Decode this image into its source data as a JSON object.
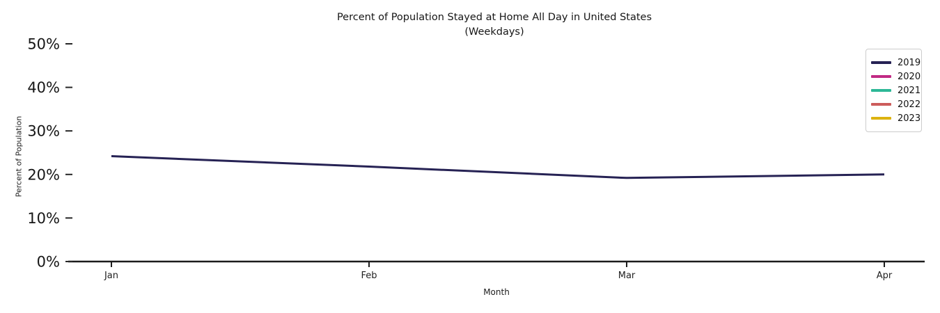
{
  "chart_data": {
    "type": "line",
    "title": "Percent of Population Stayed at Home All Day in United States",
    "subtitle": "(Weekdays)",
    "xlabel": "Month",
    "ylabel": "Percent of Population",
    "x_categories": [
      "Jan",
      "Feb",
      "Mar",
      "Apr"
    ],
    "y_tick_labels": [
      "0%",
      "10%",
      "20%",
      "30%",
      "40%",
      "50%"
    ],
    "y_tick_values": [
      0,
      10,
      20,
      30,
      40,
      50
    ],
    "ylim": [
      0,
      50
    ],
    "grid": false,
    "legend_position": "upper right",
    "series": [
      {
        "name": "2019",
        "color": "#262254",
        "values": [
          24.2,
          21.8,
          19.2,
          20.0
        ]
      },
      {
        "name": "2020",
        "color": "#c12a84",
        "values": []
      },
      {
        "name": "2021",
        "color": "#2db897",
        "values": []
      },
      {
        "name": "2022",
        "color": "#cc5c5b",
        "values": []
      },
      {
        "name": "2023",
        "color": "#ddb310",
        "values": []
      }
    ],
    "axis_color": "#1c1c1c"
  }
}
